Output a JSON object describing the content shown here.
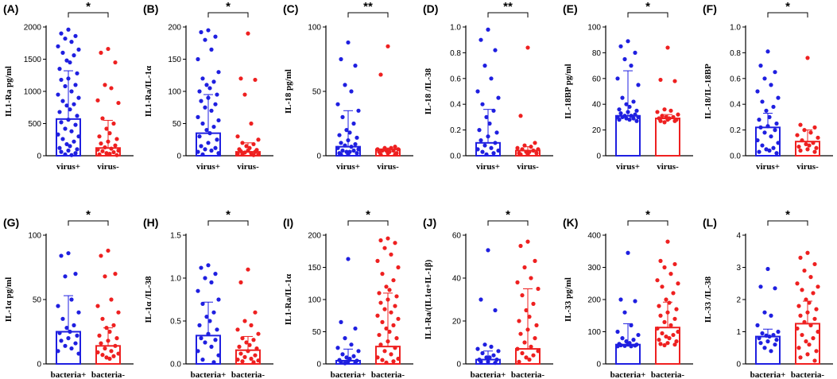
{
  "figure_title": "",
  "colors": {
    "group1": "#1f1fe0",
    "group2": "#ee2020",
    "axis": "#000000"
  },
  "chart_data": [
    {
      "label": "(A)",
      "type": "scatter",
      "ylabel": "IL1-Ra pg/ml",
      "ylim": [
        0,
        2000
      ],
      "yticks": [
        "0",
        "500",
        "1000",
        "1500",
        "2000"
      ],
      "categories": [
        "virus+",
        "virus-"
      ],
      "significance": "*",
      "series": [
        {
          "name": "virus+",
          "mean": 570,
          "err_high": 1320,
          "points": [
            1960,
            1900,
            1860,
            1820,
            1770,
            1700,
            1650,
            1600,
            1560,
            1480,
            1450,
            1350,
            1280,
            1200,
            1180,
            1100,
            1080,
            1000,
            950,
            900,
            850,
            800,
            780,
            720,
            680,
            620,
            560,
            520,
            480,
            420,
            380,
            330,
            300,
            260,
            220,
            180,
            150,
            120,
            100,
            80,
            60,
            40,
            20,
            10
          ]
        },
        {
          "name": "virus-",
          "mean": 120,
          "err_high": 550,
          "points": [
            1660,
            1600,
            1450,
            1100,
            1050,
            860,
            820,
            580,
            500,
            420,
            350,
            300,
            260,
            220,
            190,
            160,
            130,
            110,
            95,
            80,
            70,
            55,
            40,
            30,
            20,
            10
          ]
        }
      ]
    },
    {
      "label": "(B)",
      "type": "scatter",
      "ylabel": "IL1-Ra/IL-1α",
      "ylim": [
        0,
        200
      ],
      "yticks": [
        "0",
        "50",
        "100",
        "150",
        "200"
      ],
      "categories": [
        "virus+",
        "virus-"
      ],
      "significance": "*",
      "series": [
        {
          "name": "virus+",
          "mean": 35,
          "err_high": 95,
          "points": [
            195,
            192,
            185,
            180,
            165,
            150,
            130,
            120,
            115,
            110,
            105,
            100,
            95,
            90,
            85,
            80,
            75,
            70,
            60,
            55,
            50,
            45,
            40,
            35,
            30,
            25,
            20,
            15,
            12,
            10,
            8,
            6,
            4,
            2
          ]
        },
        {
          "name": "virus-",
          "mean": 6,
          "err_high": 20,
          "points": [
            190,
            120,
            118,
            95,
            50,
            30,
            25,
            20,
            18,
            15,
            12,
            10,
            9,
            8,
            7,
            6,
            5,
            4,
            3,
            2,
            2,
            1
          ]
        }
      ]
    },
    {
      "label": "(C)",
      "type": "scatter",
      "ylabel": "IL-18 pg/ml",
      "ylim": [
        0,
        100
      ],
      "yticks": [
        "0",
        "50",
        "100"
      ],
      "categories": [
        "virus+",
        "virus-"
      ],
      "significance": "**",
      "series": [
        {
          "name": "virus+",
          "mean": 7,
          "err_high": 35,
          "points": [
            88,
            75,
            70,
            55,
            50,
            40,
            35,
            30,
            25,
            20,
            18,
            16,
            14,
            12,
            10,
            9,
            8,
            7,
            6,
            5,
            4,
            4,
            3,
            3,
            2,
            2,
            1,
            1
          ]
        },
        {
          "name": "virus-",
          "mean": 5,
          "err_high": 6,
          "points": [
            85,
            63,
            7,
            6,
            6,
            5,
            5,
            4,
            4,
            4,
            3,
            3,
            2,
            2,
            1,
            1
          ]
        }
      ]
    },
    {
      "label": "(D)",
      "type": "scatter",
      "ylabel": "IL-18 /IL-38",
      "ylim": [
        0,
        1.0
      ],
      "yticks": [
        "0.0",
        "0.2",
        "0.4",
        "0.6",
        "0.8",
        "1.0"
      ],
      "categories": [
        "virus+",
        "virus-"
      ],
      "significance": "**",
      "series": [
        {
          "name": "virus+",
          "mean": 0.1,
          "err_high": 0.36,
          "points": [
            0.98,
            0.9,
            0.82,
            0.7,
            0.6,
            0.5,
            0.45,
            0.4,
            0.35,
            0.3,
            0.25,
            0.2,
            0.18,
            0.15,
            0.12,
            0.1,
            0.08,
            0.06,
            0.05,
            0.04,
            0.03,
            0.02,
            0.01
          ]
        },
        {
          "name": "virus-",
          "mean": 0.04,
          "err_high": 0.07,
          "points": [
            0.84,
            0.31,
            0.1,
            0.08,
            0.07,
            0.06,
            0.05,
            0.05,
            0.04,
            0.03,
            0.03,
            0.02,
            0.02,
            0.01,
            0.01
          ]
        }
      ]
    },
    {
      "label": "(E)",
      "type": "scatter",
      "ylabel": "IL-18BP pg/ml",
      "ylim": [
        0,
        100
      ],
      "yticks": [
        "0",
        "20",
        "40",
        "60",
        "80",
        "100"
      ],
      "categories": [
        "virus+",
        "virus-"
      ],
      "significance": "*",
      "series": [
        {
          "name": "virus+",
          "mean": 31,
          "err_high": 66,
          "points": [
            89,
            85,
            80,
            75,
            70,
            60,
            55,
            45,
            42,
            40,
            38,
            36,
            35,
            34,
            33,
            32,
            31,
            31,
            30,
            30,
            30,
            29,
            29,
            28,
            28,
            27
          ]
        },
        {
          "name": "virus-",
          "mean": 29,
          "err_high": 32,
          "points": [
            84,
            59,
            58,
            36,
            35,
            34,
            32,
            31,
            30,
            30,
            29,
            29,
            28,
            28,
            27,
            27,
            26
          ]
        }
      ]
    },
    {
      "label": "(F)",
      "type": "scatter",
      "ylabel": "IL-18/IL-18BP",
      "ylim": [
        0,
        1.0
      ],
      "yticks": [
        "0.0",
        "0.2",
        "0.4",
        "0.6",
        "0.8",
        "1.0"
      ],
      "categories": [
        "virus+",
        "virus-"
      ],
      "significance": "*",
      "series": [
        {
          "name": "virus+",
          "mean": 0.22,
          "err_high": 0.33,
          "points": [
            0.81,
            0.7,
            0.65,
            0.6,
            0.55,
            0.5,
            0.45,
            0.42,
            0.38,
            0.35,
            0.3,
            0.28,
            0.25,
            0.23,
            0.22,
            0.2,
            0.18,
            0.15,
            0.12,
            0.1,
            0.08,
            0.06,
            0.05,
            0.04,
            0.03,
            0.02
          ]
        },
        {
          "name": "virus-",
          "mean": 0.11,
          "err_high": 0.2,
          "points": [
            0.76,
            0.24,
            0.22,
            0.2,
            0.18,
            0.16,
            0.14,
            0.12,
            0.1,
            0.09,
            0.08,
            0.07,
            0.06,
            0.05,
            0.04,
            0.03
          ]
        }
      ]
    },
    {
      "label": "(G)",
      "type": "scatter",
      "ylabel": "IL-1α pg/ml",
      "ylim": [
        0,
        100
      ],
      "yticks": [
        "0",
        "50",
        "100"
      ],
      "categories": [
        "bacteria+",
        "bacteria-"
      ],
      "significance": "*",
      "series": [
        {
          "name": "bacteria+",
          "mean": 25,
          "err_high": 53,
          "points": [
            86,
            84,
            70,
            68,
            50,
            45,
            40,
            35,
            30,
            28,
            25,
            24,
            22,
            20,
            18,
            16,
            14,
            12,
            10,
            8
          ]
        },
        {
          "name": "bacteria-",
          "mean": 14,
          "err_high": 28,
          "points": [
            88,
            84,
            70,
            68,
            50,
            45,
            40,
            35,
            30,
            28,
            25,
            22,
            20,
            18,
            16,
            14,
            12,
            10,
            9,
            8,
            7,
            6,
            5,
            4
          ]
        }
      ]
    },
    {
      "label": "(H)",
      "type": "scatter",
      "ylabel": "IL-1α /IL-38",
      "ylim": [
        0,
        1.5
      ],
      "yticks": [
        "0.0",
        "0.5",
        "1.0",
        "1.5"
      ],
      "categories": [
        "bacteria+",
        "bacteria-"
      ],
      "significance": "*",
      "series": [
        {
          "name": "bacteria+",
          "mean": 0.33,
          "err_high": 0.72,
          "points": [
            1.15,
            1.12,
            1.05,
            1.0,
            0.95,
            0.85,
            0.75,
            0.7,
            0.6,
            0.55,
            0.5,
            0.45,
            0.4,
            0.35,
            0.3,
            0.28,
            0.25,
            0.2,
            0.15,
            0.1,
            0.05,
            0.02
          ]
        },
        {
          "name": "bacteria-",
          "mean": 0.16,
          "err_high": 0.32,
          "points": [
            1.1,
            0.95,
            0.6,
            0.5,
            0.45,
            0.4,
            0.35,
            0.3,
            0.28,
            0.25,
            0.22,
            0.2,
            0.18,
            0.15,
            0.12,
            0.1,
            0.08,
            0.06,
            0.05,
            0.04,
            0.03,
            0.02
          ]
        }
      ]
    },
    {
      "label": "(I)",
      "type": "scatter",
      "ylabel": "IL1-Ra/IL-1α",
      "ylim": [
        0,
        200
      ],
      "yticks": [
        "0",
        "50",
        "100",
        "150",
        "200"
      ],
      "categories": [
        "bacteria+",
        "bacteria-"
      ],
      "significance": "*",
      "series": [
        {
          "name": "bacteria+",
          "mean": 5,
          "err_high": 23,
          "points": [
            163,
            65,
            55,
            40,
            30,
            25,
            20,
            15,
            12,
            10,
            8,
            6,
            5,
            4,
            3,
            2,
            1
          ]
        },
        {
          "name": "bacteria-",
          "mean": 27,
          "err_high": 110,
          "points": [
            195,
            192,
            188,
            180,
            170,
            160,
            150,
            140,
            130,
            120,
            115,
            110,
            105,
            100,
            95,
            90,
            85,
            80,
            75,
            70,
            65,
            60,
            55,
            50,
            45,
            40,
            35,
            30,
            25,
            20,
            15,
            10,
            8,
            6,
            4,
            2
          ]
        }
      ]
    },
    {
      "label": "(J)",
      "type": "scatter",
      "ylabel": "IL1-Ra/(IL1α+IL-1β)",
      "ylim": [
        0,
        60
      ],
      "yticks": [
        "0",
        "20",
        "40",
        "60"
      ],
      "categories": [
        "bacteria+",
        "bacteria-"
      ],
      "significance": "*",
      "series": [
        {
          "name": "bacteria+",
          "mean": 2,
          "err_high": 6,
          "points": [
            53,
            30,
            25,
            9,
            8,
            7,
            6,
            5,
            4,
            3,
            3,
            2,
            2,
            1,
            1,
            0.5
          ]
        },
        {
          "name": "bacteria-",
          "mean": 7,
          "err_high": 35,
          "points": [
            57,
            55,
            48,
            45,
            40,
            38,
            35,
            32,
            28,
            25,
            22,
            20,
            18,
            16,
            14,
            12,
            10,
            8,
            7,
            6,
            5,
            4,
            3,
            2,
            1
          ]
        }
      ]
    },
    {
      "label": "(K)",
      "type": "scatter",
      "ylabel": "IL-33 pg/ml",
      "ylim": [
        0,
        400
      ],
      "yticks": [
        "0",
        "100",
        "200",
        "300",
        "400"
      ],
      "categories": [
        "bacteria+",
        "bacteria-"
      ],
      "significance": "*",
      "series": [
        {
          "name": "bacteria+",
          "mean": 60,
          "err_high": 125,
          "points": [
            345,
            200,
            195,
            160,
            120,
            100,
            90,
            80,
            75,
            70,
            65,
            62,
            60,
            60,
            58,
            57,
            56,
            55,
            55
          ]
        },
        {
          "name": "bacteria-",
          "mean": 113,
          "err_high": 192,
          "points": [
            380,
            320,
            310,
            300,
            280,
            260,
            250,
            240,
            220,
            200,
            190,
            180,
            170,
            160,
            150,
            140,
            130,
            120,
            110,
            100,
            95,
            90,
            85,
            80,
            75,
            70,
            65,
            62,
            60,
            58
          ]
        }
      ]
    },
    {
      "label": "(L)",
      "type": "scatter",
      "ylabel": "IL-33 /IL-38",
      "ylim": [
        0,
        4
      ],
      "yticks": [
        "0",
        "1",
        "2",
        "3",
        "4"
      ],
      "categories": [
        "bacteria+",
        "bacteria-"
      ],
      "significance": "*",
      "series": [
        {
          "name": "bacteria+",
          "mean": 0.85,
          "err_high": 1.08,
          "points": [
            2.95,
            2.4,
            2.35,
            1.6,
            1.5,
            1.2,
            1.0,
            0.95,
            0.9,
            0.88,
            0.85,
            0.8,
            0.75,
            0.7,
            0.65,
            0.6,
            0.5,
            0.4
          ]
        },
        {
          "name": "bacteria-",
          "mean": 1.25,
          "err_high": 1.95,
          "points": [
            3.45,
            3.3,
            3.1,
            2.9,
            2.7,
            2.5,
            2.4,
            2.3,
            2.2,
            2.0,
            1.9,
            1.8,
            1.7,
            1.6,
            1.5,
            1.4,
            1.3,
            1.2,
            1.1,
            1.0,
            0.9,
            0.8,
            0.7,
            0.6,
            0.5,
            0.4,
            0.3,
            0.2,
            0.1
          ]
        }
      ]
    }
  ]
}
